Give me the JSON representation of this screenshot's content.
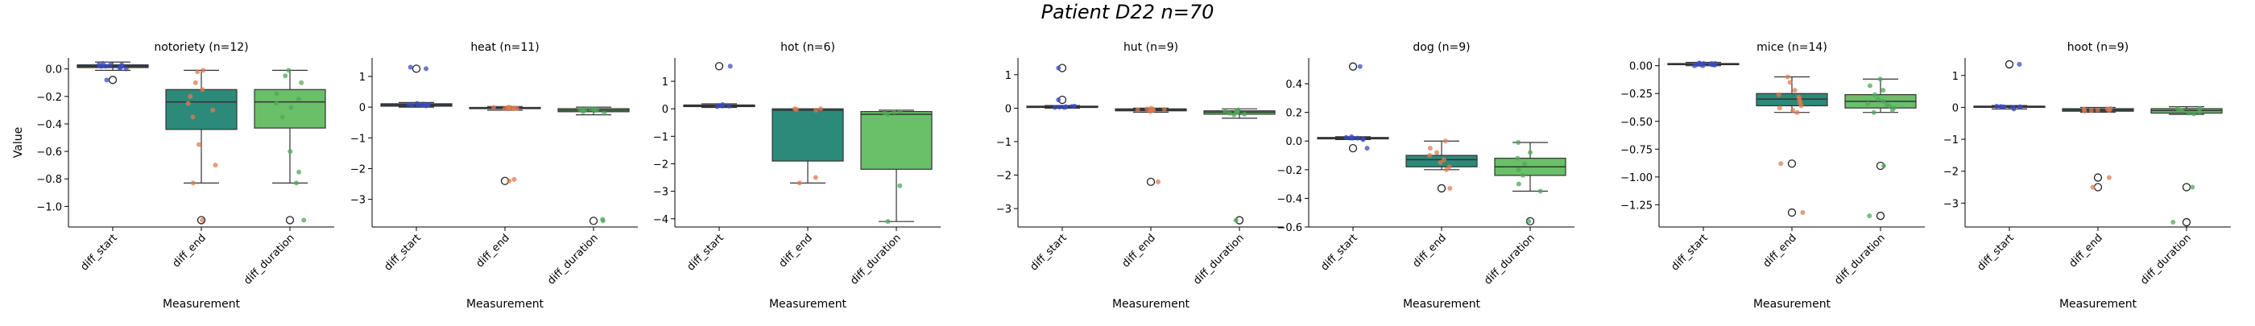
{
  "title": "Patient D22 n=70",
  "chart_data": [
    {
      "type": "box",
      "title": "notoriety (n=12)",
      "xlabel": "Measurement",
      "ylabel": "Value",
      "categories": [
        "diff_start",
        "diff_end",
        "diff_duration"
      ],
      "ylim": [
        -1.15,
        0.08
      ],
      "yticks": [
        0.0,
        -0.2,
        -0.4,
        -0.6,
        -0.8,
        -1.0
      ],
      "ytick_labels": [
        "0.0",
        "−0.2",
        "−0.4",
        "−0.6",
        "−0.8",
        "−1.0"
      ],
      "boxes": [
        {
          "whislo": -0.01,
          "q1": 0.01,
          "med": 0.02,
          "q3": 0.03,
          "whishi": 0.05,
          "fliers": [
            -0.08
          ]
        },
        {
          "whislo": -0.83,
          "q1": -0.44,
          "med": -0.24,
          "q3": -0.15,
          "whishi": -0.01,
          "fliers": [
            -1.1
          ]
        },
        {
          "whislo": -0.83,
          "q1": -0.43,
          "med": -0.24,
          "q3": -0.15,
          "whishi": -0.01,
          "fliers": [
            -1.1
          ]
        }
      ],
      "points": [
        [
          0.01,
          0.02,
          0.03,
          0.02,
          0.04,
          0.03,
          0.02,
          0.0,
          -0.08,
          0.01,
          0.03,
          0.02
        ],
        [
          -0.01,
          -0.02,
          -0.1,
          -0.15,
          -0.2,
          -0.25,
          -0.3,
          -0.35,
          -0.55,
          -0.7,
          -0.83,
          -1.1
        ],
        [
          -0.01,
          -0.05,
          -0.1,
          -0.18,
          -0.22,
          -0.25,
          -0.28,
          -0.35,
          -0.6,
          -0.75,
          -0.83,
          -1.1
        ]
      ]
    },
    {
      "type": "box",
      "title": "heat (n=11)",
      "xlabel": "Measurement",
      "ylabel": "",
      "categories": [
        "diff_start",
        "diff_end",
        "diff_duration"
      ],
      "ylim": [
        -3.9,
        1.6
      ],
      "yticks": [
        1,
        0,
        -1,
        -2,
        -3
      ],
      "ytick_labels": [
        "1",
        "0",
        "−1",
        "−2",
        "−3"
      ],
      "boxes": [
        {
          "whislo": 0.0,
          "q1": 0.03,
          "med": 0.07,
          "q3": 0.11,
          "whishi": 0.15,
          "fliers": [
            1.25
          ]
        },
        {
          "whislo": -0.1,
          "q1": -0.05,
          "med": -0.03,
          "q3": -0.01,
          "whishi": 0.02,
          "fliers": [
            -2.4
          ]
        },
        {
          "whislo": -0.25,
          "q1": -0.15,
          "med": -0.1,
          "q3": -0.05,
          "whishi": 0.0,
          "fliers": [
            -3.7
          ]
        }
      ],
      "points": [
        [
          0.05,
          0.08,
          0.1,
          0.06,
          0.12,
          0.04,
          0.07,
          0.09,
          1.3,
          1.25,
          0.05
        ],
        [
          -0.02,
          -0.05,
          0.0,
          -0.03,
          -0.04,
          -0.02,
          -0.01,
          -0.05,
          -2.35,
          -2.4,
          -0.03
        ],
        [
          -0.05,
          -0.1,
          -0.15,
          -0.08,
          -0.12,
          -0.2,
          -0.05,
          -0.1,
          -3.7,
          -3.65,
          -0.1
        ]
      ]
    },
    {
      "type": "box",
      "title": "hot (n=6)",
      "xlabel": "Measurement",
      "ylabel": "",
      "categories": [
        "diff_start",
        "diff_end",
        "diff_duration"
      ],
      "ylim": [
        -4.3,
        1.85
      ],
      "yticks": [
        1,
        0,
        -1,
        -2,
        -3,
        -4
      ],
      "ytick_labels": [
        "1",
        "0",
        "−1",
        "−2",
        "−3",
        "−4"
      ],
      "boxes": [
        {
          "whislo": 0.05,
          "q1": 0.08,
          "med": 0.1,
          "q3": 0.14,
          "whishi": 0.18,
          "fliers": [
            1.55
          ]
        },
        {
          "whislo": -2.7,
          "q1": -1.9,
          "med": -0.05,
          "q3": 0.0,
          "whishi": 0.0,
          "fliers": []
        },
        {
          "whislo": -4.1,
          "q1": -2.2,
          "med": -0.2,
          "q3": -0.1,
          "whishi": -0.05,
          "fliers": []
        }
      ],
      "points": [
        [
          0.1,
          0.12,
          0.15,
          0.08,
          0.1,
          1.55
        ],
        [
          0.0,
          -0.02,
          -0.05,
          0.0,
          -2.5,
          -2.7
        ],
        [
          -0.1,
          -0.15,
          -0.2,
          -0.12,
          -2.8,
          -4.1
        ]
      ]
    },
    {
      "type": "box",
      "title": "hut (n=9)",
      "xlabel": "Measurement",
      "ylabel": "",
      "categories": [
        "diff_start",
        "diff_end",
        "diff_duration"
      ],
      "ylim": [
        -3.55,
        1.5
      ],
      "yticks": [
        1,
        0,
        -1,
        -2,
        -3
      ],
      "ytick_labels": [
        "1",
        "0",
        "−1",
        "−2",
        "−3"
      ],
      "boxes": [
        {
          "whislo": 0.0,
          "q1": 0.02,
          "med": 0.04,
          "q3": 0.06,
          "whishi": 0.08,
          "fliers": [
            1.2,
            0.25
          ]
        },
        {
          "whislo": -0.12,
          "q1": -0.08,
          "med": -0.05,
          "q3": -0.02,
          "whishi": 0.0,
          "fliers": [
            -2.2
          ]
        },
        {
          "whislo": -0.3,
          "q1": -0.18,
          "med": -0.12,
          "q3": -0.08,
          "whishi": -0.02,
          "fliers": [
            -3.35
          ]
        }
      ],
      "points": [
        [
          0.02,
          0.04,
          0.05,
          0.03,
          0.06,
          0.04,
          0.02,
          0.25,
          1.2
        ],
        [
          -0.02,
          -0.05,
          -0.08,
          -0.04,
          -0.06,
          -0.03,
          0.0,
          -0.1,
          -2.2
        ],
        [
          -0.08,
          -0.12,
          -0.15,
          -0.1,
          -0.18,
          -0.05,
          -0.12,
          -0.2,
          -3.35
        ]
      ]
    },
    {
      "type": "box",
      "title": "dog (n=9)",
      "xlabel": "Measurement",
      "ylabel": "",
      "categories": [
        "diff_start",
        "diff_end",
        "diff_duration"
      ],
      "ylim": [
        -0.6,
        0.58
      ],
      "yticks": [
        0.4,
        0.2,
        0.0,
        -0.2,
        -0.4,
        -0.6
      ],
      "ytick_labels": [
        "0.4",
        "0.2",
        "0.0",
        "−0.2",
        "−0.4",
        "−0.6"
      ],
      "boxes": [
        {
          "whislo": 0.01,
          "q1": 0.015,
          "med": 0.02,
          "q3": 0.025,
          "whishi": 0.03,
          "fliers": [
            0.52,
            -0.05
          ]
        },
        {
          "whislo": -0.2,
          "q1": -0.18,
          "med": -0.13,
          "q3": -0.1,
          "whishi": 0.0,
          "fliers": [
            -0.33
          ]
        },
        {
          "whislo": -0.35,
          "q1": -0.24,
          "med": -0.18,
          "q3": -0.12,
          "whishi": -0.01,
          "fliers": [
            -0.56
          ]
        }
      ],
      "points": [
        [
          0.01,
          0.02,
          0.02,
          0.03,
          0.015,
          0.025,
          0.02,
          -0.05,
          0.52
        ],
        [
          0.0,
          -0.05,
          -0.1,
          -0.13,
          -0.15,
          -0.18,
          -0.2,
          -0.08,
          -0.33
        ],
        [
          -0.01,
          -0.08,
          -0.12,
          -0.16,
          -0.2,
          -0.24,
          -0.3,
          -0.35,
          -0.56
        ]
      ]
    },
    {
      "type": "box",
      "title": "mice (n=14)",
      "xlabel": "Measurement",
      "ylabel": "",
      "categories": [
        "diff_start",
        "diff_end",
        "diff_duration"
      ],
      "ylim": [
        -1.45,
        0.07
      ],
      "yticks": [
        0.0,
        -0.25,
        -0.5,
        -0.75,
        -1.0,
        -1.25
      ],
      "ytick_labels": [
        "0.00",
        "−0.25",
        "−0.50",
        "−0.75",
        "−1.00",
        "−1.25"
      ],
      "boxes": [
        {
          "whislo": 0.0,
          "q1": 0.01,
          "med": 0.015,
          "q3": 0.02,
          "whishi": 0.03,
          "fliers": []
        },
        {
          "whislo": -0.42,
          "q1": -0.36,
          "med": -0.3,
          "q3": -0.25,
          "whishi": -0.1,
          "fliers": [
            -0.88,
            -1.32
          ]
        },
        {
          "whislo": -0.42,
          "q1": -0.38,
          "med": -0.32,
          "q3": -0.26,
          "whishi": -0.12,
          "fliers": [
            -0.9,
            -1.35
          ]
        }
      ],
      "points": [
        [
          0.0,
          0.01,
          0.02,
          0.015,
          0.025,
          0.01,
          0.02,
          0.005,
          0.015,
          0.02,
          0.01,
          0.0,
          0.02,
          0.01
        ],
        [
          -0.1,
          -0.15,
          -0.22,
          -0.26,
          -0.28,
          -0.3,
          -0.32,
          -0.34,
          -0.36,
          -0.38,
          -0.4,
          -0.42,
          -0.88,
          -1.32
        ],
        [
          -0.12,
          -0.18,
          -0.22,
          -0.26,
          -0.3,
          -0.32,
          -0.34,
          -0.36,
          -0.38,
          -0.4,
          -0.42,
          -0.35,
          -0.9,
          -1.35
        ]
      ]
    },
    {
      "type": "box",
      "title": "hoot (n=9)",
      "xlabel": "Measurement",
      "ylabel": "",
      "categories": [
        "diff_start",
        "diff_end",
        "diff_duration"
      ],
      "ylim": [
        -3.75,
        1.55
      ],
      "yticks": [
        1,
        0,
        -1,
        -2,
        -3
      ],
      "ytick_labels": [
        "1",
        "0",
        "−1",
        "−2",
        "−3"
      ],
      "boxes": [
        {
          "whislo": -0.05,
          "q1": 0.0,
          "med": 0.02,
          "q3": 0.04,
          "whishi": 0.06,
          "fliers": [
            1.35
          ]
        },
        {
          "whislo": -0.15,
          "q1": -0.12,
          "med": -0.08,
          "q3": -0.04,
          "whishi": 0.0,
          "fliers": [
            -2.2,
            -2.5
          ]
        },
        {
          "whislo": -0.22,
          "q1": -0.18,
          "med": -0.1,
          "q3": -0.04,
          "whishi": 0.02,
          "fliers": [
            -2.5,
            -3.6
          ]
        }
      ],
      "points": [
        [
          0.0,
          0.02,
          0.04,
          0.01,
          0.03,
          -0.05,
          0.02,
          0.0,
          1.35
        ],
        [
          -0.04,
          -0.08,
          -0.1,
          -0.12,
          -0.06,
          -0.05,
          -0.1,
          -2.2,
          -2.5
        ],
        [
          -0.04,
          -0.1,
          -0.15,
          -0.18,
          -0.05,
          -0.1,
          -0.2,
          -2.5,
          -3.6
        ]
      ]
    }
  ],
  "colors": {
    "box": [
      "#3b4cc0",
      "#2c8a7a",
      "#6abf69"
    ],
    "points": [
      "#3b4cc0",
      "#e07b4f",
      "#4fa85a"
    ],
    "axis": "#000000",
    "median": "#333333"
  }
}
